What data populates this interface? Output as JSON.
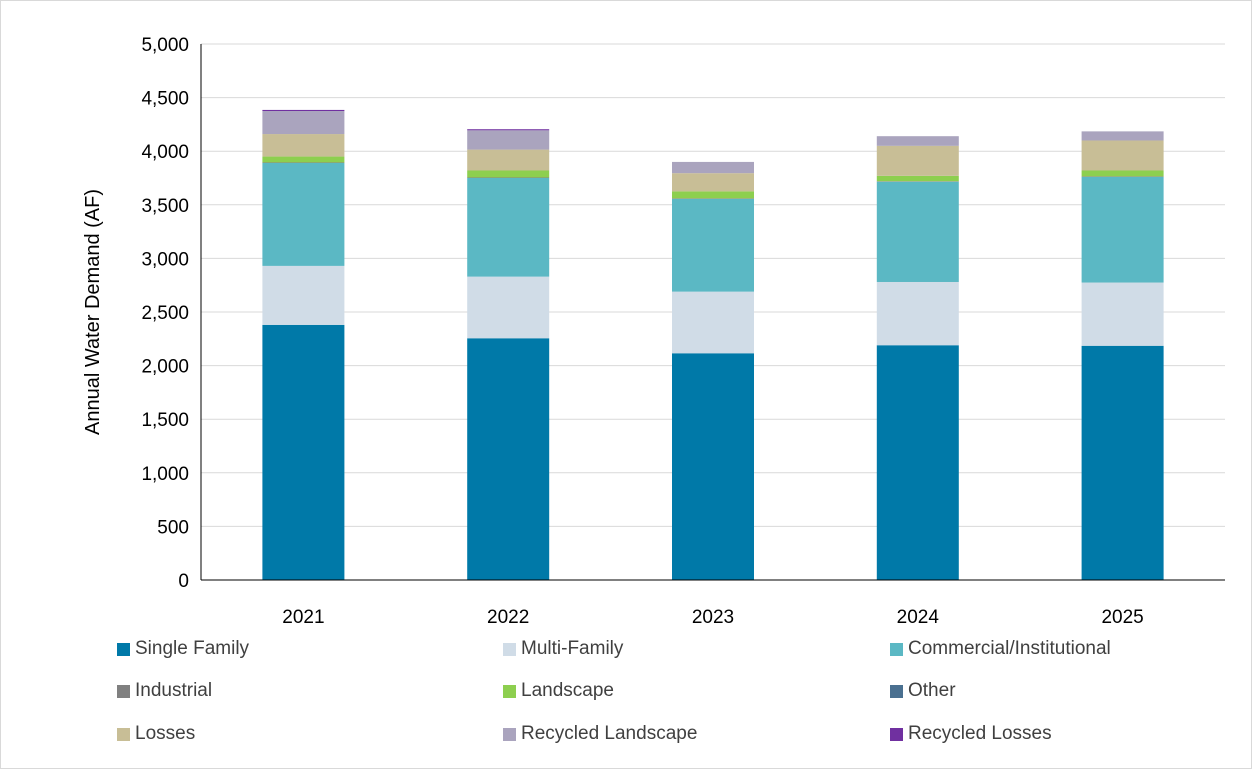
{
  "chart_data": {
    "type": "bar",
    "stacked": true,
    "categories": [
      "2021",
      "2022",
      "2023",
      "2024",
      "2025"
    ],
    "ylabel": "Annual Water Demand (AF)",
    "ylim": [
      0,
      5000
    ],
    "yticks": [
      "0",
      "500",
      "1,000",
      "1,500",
      "2,000",
      "2,500",
      "3,000",
      "3,500",
      "4,000",
      "4,500",
      "5,000"
    ],
    "grid": true,
    "legend_position": "bottom",
    "series": [
      {
        "name": "Single Family",
        "color": "#0079A8",
        "values": [
          2380,
          2255,
          2115,
          2190,
          2185
        ]
      },
      {
        "name": "Multi-Family",
        "color": "#D0DCE7",
        "values": [
          550,
          575,
          575,
          590,
          590
        ]
      },
      {
        "name": "Commercial/Institutional",
        "color": "#5BB8C4",
        "values": [
          960,
          920,
          865,
          935,
          985
        ]
      },
      {
        "name": "Industrial",
        "color": "#808080",
        "values": [
          5,
          5,
          5,
          5,
          5
        ]
      },
      {
        "name": "Landscape",
        "color": "#8DCF4F",
        "values": [
          55,
          65,
          65,
          50,
          55
        ]
      },
      {
        "name": "Other",
        "color": "#4A7090",
        "values": [
          0,
          0,
          0,
          0,
          0
        ]
      },
      {
        "name": "Losses",
        "color": "#C8BE96",
        "values": [
          210,
          195,
          170,
          280,
          280
        ]
      },
      {
        "name": "Recycled Landscape",
        "color": "#AAA4BE",
        "values": [
          215,
          180,
          105,
          90,
          85
        ]
      },
      {
        "name": "Recycled Losses",
        "color": "#7030A0",
        "values": [
          10,
          10,
          0,
          0,
          0
        ]
      }
    ]
  }
}
